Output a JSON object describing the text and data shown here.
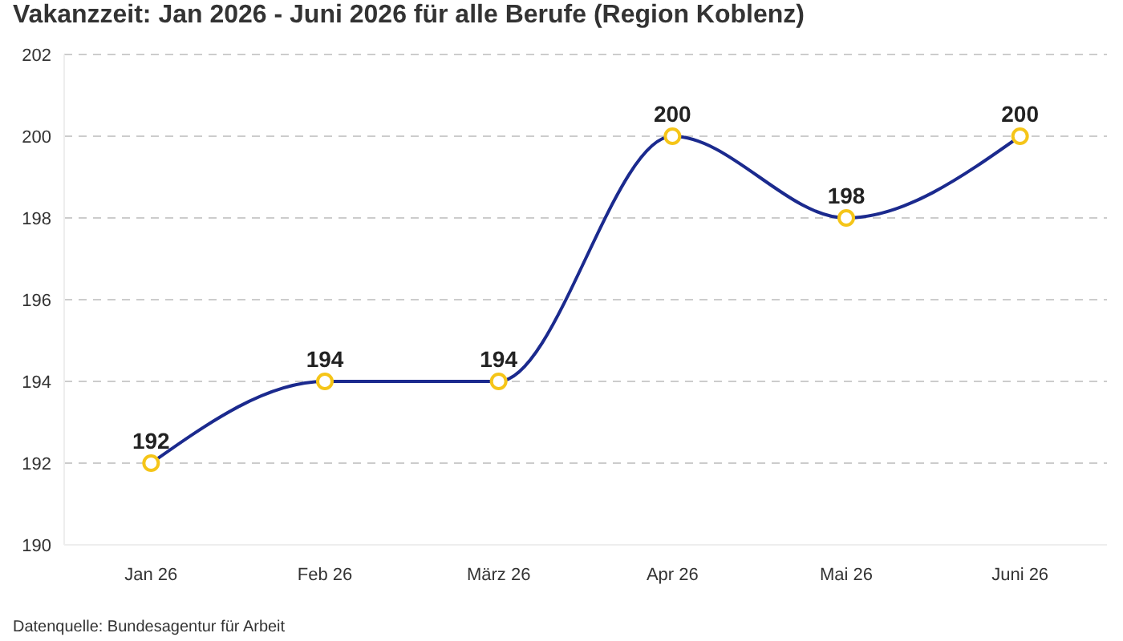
{
  "chart_data": {
    "type": "line",
    "title": "Vakanzzeit: Jan 2026 - Juni 2026 für alle Berufe (Region Koblenz)",
    "categories": [
      "Jan 26",
      "Feb 26",
      "März 26",
      "Apr 26",
      "Mai 26",
      "Juni 26"
    ],
    "series": [
      {
        "color": "#1b2a8e",
        "colors": [
          "#f5c518",
          "#f5c518",
          "#f5c518",
          "#f5c518",
          "#f5c518",
          "#f5c518"
        ],
        "values": [
          192,
          194,
          194,
          200,
          198,
          200
        ]
      }
    ],
    "ylim": [
      190,
      202
    ],
    "yticks": [
      190,
      192,
      194,
      196,
      198,
      200,
      202
    ],
    "grid": "y",
    "marker": "circle",
    "line_style": "solid",
    "data_labels": true,
    "legend": false,
    "annotations": [
      "Datenquelle: Bundesagentur für Arbeit"
    ]
  }
}
